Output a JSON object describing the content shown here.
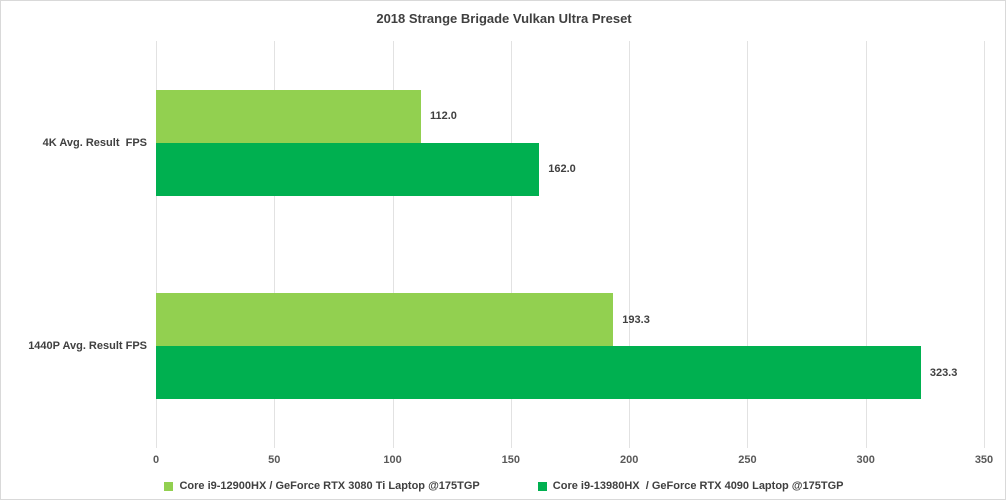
{
  "title": "2018 Strange Brigade Vulkan Ultra Preset",
  "colors": {
    "series1": "#92d050",
    "series2": "#00b050",
    "gridline": "#e2e2e2",
    "title_text": "#404040",
    "axis_text": "#595959",
    "label_text": "#404040",
    "frame_border": "#d9d9d9",
    "background": "#ffffff"
  },
  "chart_data": {
    "type": "bar",
    "orientation": "horizontal",
    "title": "2018 Strange Brigade Vulkan Ultra Preset",
    "categories": [
      "4K Avg. Result  FPS",
      "1440P Avg. Result FPS"
    ],
    "series": [
      {
        "name": "Core i9-12900HX / GeForce RTX 3080 Ti Laptop @175TGP",
        "color": "#92d050",
        "values": [
          112.0,
          193.3
        ]
      },
      {
        "name": "Core i9-13980HX  / GeForce RTX 4090 Laptop @175TGP",
        "color": "#00b050",
        "values": [
          162.0,
          323.3
        ]
      }
    ],
    "value_label_format": "one_decimal",
    "xlabel": "",
    "ylabel": "",
    "xlim": [
      0,
      350
    ],
    "xticks": [
      0,
      50,
      100,
      150,
      200,
      250,
      300,
      350
    ],
    "grid": true,
    "legend_position": "bottom"
  }
}
